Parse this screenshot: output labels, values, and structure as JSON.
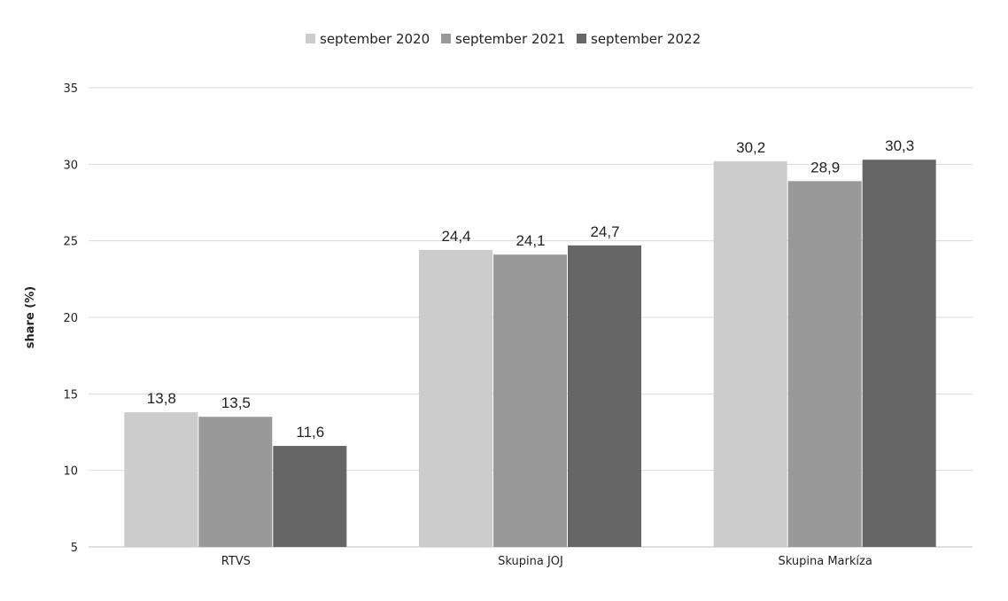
{
  "chart_data": {
    "type": "bar",
    "title": "",
    "xlabel": "",
    "ylabel": "share (%)",
    "categories": [
      "RTVS",
      "Skupina JOJ",
      "Skupina Markíza"
    ],
    "series": [
      {
        "name": "september 2020",
        "values": [
          13.8,
          24.4,
          30.2
        ],
        "labels": [
          "13,8",
          "24,4",
          "30,2"
        ],
        "color": "#cccccc"
      },
      {
        "name": "september 2021",
        "values": [
          13.5,
          24.1,
          28.9
        ],
        "labels": [
          "13,5",
          "24,1",
          "28,9"
        ],
        "color": "#999999"
      },
      {
        "name": "september 2022",
        "values": [
          11.6,
          24.7,
          30.3
        ],
        "labels": [
          "11,6",
          "24,7",
          "30,3"
        ],
        "color": "#666666"
      }
    ],
    "ylim": [
      5,
      35
    ],
    "yticks": [
      "5",
      "10",
      "15",
      "20",
      "25",
      "30",
      "35"
    ],
    "grid": true,
    "legend_position": "top-center"
  }
}
